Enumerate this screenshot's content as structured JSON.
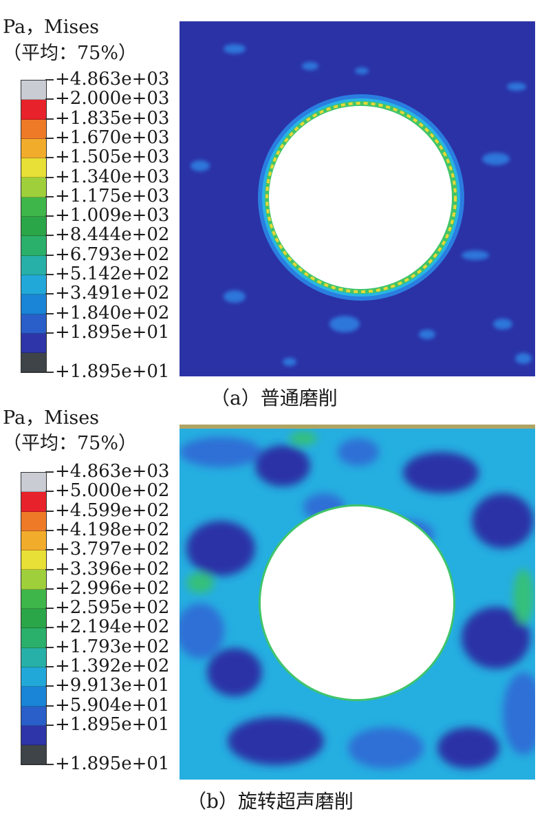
{
  "panels": [
    {
      "id": "a",
      "legend_title": "Pa，Mises",
      "legend_subtitle": "（平均：75%）",
      "legend_labels": [
        "+4.863e+03",
        "+2.000e+03",
        "+1.835e+03",
        "+1.670e+03",
        "+1.505e+03",
        "+1.340e+03",
        "+1.175e+03",
        "+1.009e+03",
        "+8.444e+02",
        "+6.793e+02",
        "+5.142e+02",
        "+3.491e+02",
        "+1.840e+02",
        "+1.895e+01",
        "+1.895e+01"
      ],
      "caption": "（a）普通磨削"
    },
    {
      "id": "b",
      "legend_title": "Pa，Mises",
      "legend_subtitle": "（平均：75%）",
      "legend_labels": [
        "+4.863e+03",
        "+5.000e+02",
        "+4.599e+02",
        "+4.198e+02",
        "+3.797e+02",
        "+3.396e+02",
        "+2.996e+02",
        "+2.595e+02",
        "+2.194e+02",
        "+1.793e+02",
        "+1.392e+02",
        "+9.913e+01",
        "+5.904e+01",
        "+1.895e+01",
        "+1.895e+01"
      ],
      "caption": "（b）旋转超声磨削"
    }
  ],
  "legend_colors": [
    "#c9ccd2",
    "#e8222a",
    "#ee7a28",
    "#f2ac2c",
    "#e8e036",
    "#9fd03c",
    "#3fb64a",
    "#2aa548",
    "#2ab06a",
    "#27b0a8",
    "#22a8d8",
    "#1a84d6",
    "#2a5ec8",
    "#2e35a8",
    "#3e4448"
  ],
  "colors": {
    "field_dark_blue": "#2b32a6",
    "field_mid_blue": "#2f6fd6",
    "field_cyan": "#25aee0",
    "field_green": "#34c07a",
    "hole": "#ffffff"
  }
}
